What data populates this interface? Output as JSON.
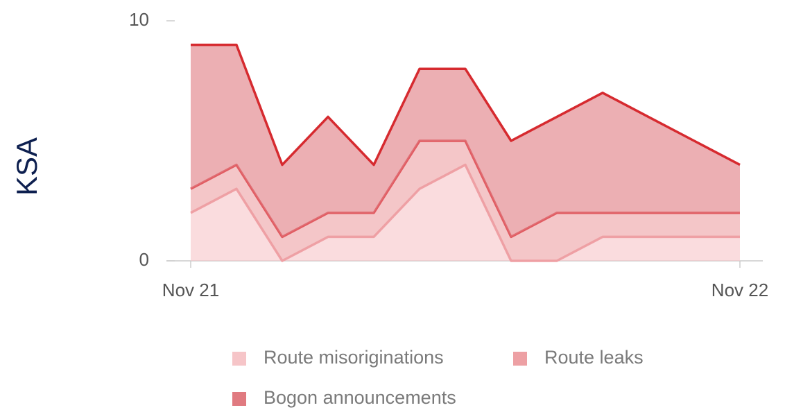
{
  "chart_data": {
    "type": "stacked_area",
    "ylabel": "KSA",
    "categories": [
      "Nov 21",
      null,
      null,
      null,
      null,
      null,
      null,
      null,
      null,
      null,
      null,
      null,
      "Nov 22"
    ],
    "series": [
      {
        "name": "Route misoriginations",
        "color": "#f6c5c8",
        "line_color": "#efa0a5",
        "values": [
          2,
          3,
          0,
          1,
          1,
          3,
          4,
          0,
          0,
          1,
          1,
          1,
          1
        ]
      },
      {
        "name": "Route leaks",
        "color": "#eda0a4",
        "line_color": "#e15a60",
        "values": [
          1,
          1,
          1,
          1,
          1,
          2,
          1,
          1,
          2,
          1,
          1,
          1,
          1
        ]
      },
      {
        "name": "Bogon announcements",
        "color": "#e07a80",
        "line_color": "#d62a2f",
        "values": [
          6,
          5,
          3,
          4,
          2,
          3,
          3,
          4,
          4,
          5,
          4,
          3,
          2
        ]
      }
    ],
    "ylim": [
      0,
      10
    ],
    "yticks": [
      0,
      10
    ]
  }
}
